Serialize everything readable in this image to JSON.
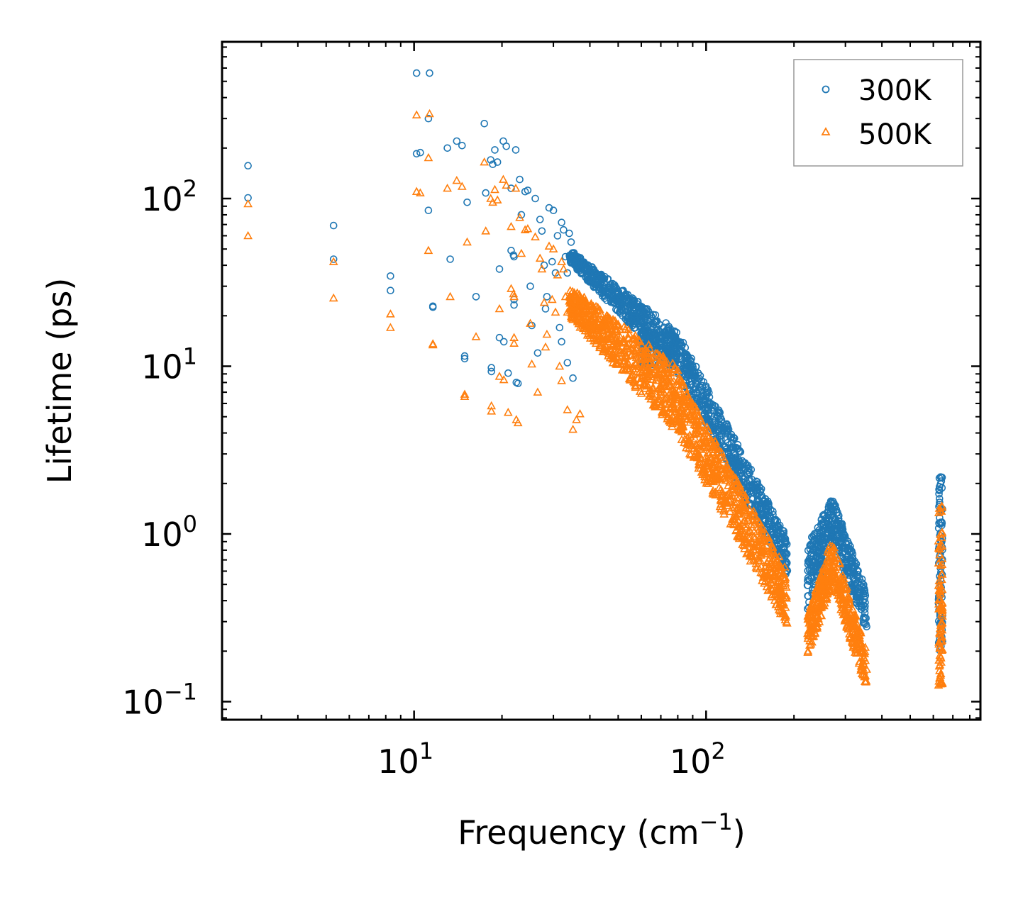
{
  "chart_data": {
    "type": "scatter",
    "x_scale": "log",
    "y_scale": "log",
    "xlabel": "Frequency (cm",
    "xlabel_sup": "−1",
    "xlabel_suffix": ")",
    "ylabel": "Lifetime (ps)",
    "xlim": [
      2.2,
      870
    ],
    "ylim": [
      0.078,
      860
    ],
    "x_ticks": [
      {
        "value": 10,
        "base": "10",
        "exp": "1"
      },
      {
        "value": 100,
        "base": "10",
        "exp": "2"
      }
    ],
    "y_ticks": [
      {
        "value": 0.1,
        "base": "10",
        "exp": "−1"
      },
      {
        "value": 1,
        "base": "10",
        "exp": "0"
      },
      {
        "value": 10,
        "base": "10",
        "exp": "1"
      },
      {
        "value": 100,
        "base": "10",
        "exp": "2"
      }
    ],
    "legend_position": "top-right",
    "series": [
      {
        "name": "300K",
        "marker": "circle",
        "color": "#1f77b4",
        "points": [
          [
            2.7,
            157
          ],
          [
            2.7,
            101
          ],
          [
            5.3,
            69
          ],
          [
            5.3,
            43.5
          ],
          [
            8.3,
            34.5
          ],
          [
            8.3,
            28.3
          ],
          [
            10.2,
            560
          ],
          [
            11.3,
            560
          ],
          [
            11.2,
            300
          ],
          [
            10.2,
            185
          ],
          [
            10.5,
            188
          ],
          [
            11.2,
            85
          ],
          [
            11.6,
            22.5
          ],
          [
            11.6,
            22.8
          ],
          [
            13.3,
            43.5
          ],
          [
            13.0,
            200
          ],
          [
            14.0,
            220
          ],
          [
            14.6,
            207
          ],
          [
            15.2,
            95
          ],
          [
            14.9,
            11.5
          ],
          [
            14.9,
            11.1
          ],
          [
            16.3,
            26.0
          ],
          [
            17.4,
            280
          ],
          [
            17.6,
            108
          ],
          [
            18.3,
            170
          ],
          [
            18.6,
            160
          ],
          [
            18.9,
            195
          ],
          [
            19.3,
            165
          ],
          [
            19.6,
            38
          ],
          [
            18.4,
            9.8
          ],
          [
            18.4,
            9.3
          ],
          [
            19.6,
            14.8
          ],
          [
            20.2,
            220
          ],
          [
            20.7,
            205
          ],
          [
            21.0,
            9.1
          ],
          [
            20.3,
            14.0
          ],
          [
            21.5,
            115
          ],
          [
            21.5,
            49
          ],
          [
            21.9,
            46
          ],
          [
            22.0,
            25
          ],
          [
            22.0,
            23.2
          ],
          [
            22.0,
            45
          ],
          [
            22.3,
            195
          ],
          [
            22.4,
            8.0
          ],
          [
            22.7,
            7.9
          ],
          [
            23.0,
            130
          ],
          [
            23.3,
            80
          ],
          [
            24.0,
            110
          ],
          [
            24.5,
            112
          ],
          [
            25.0,
            30
          ],
          [
            25.3,
            17.5
          ],
          [
            26.0,
            100
          ],
          [
            27.0,
            75
          ],
          [
            27.4,
            64
          ],
          [
            27.9,
            40
          ],
          [
            28.2,
            22
          ],
          [
            29.0,
            88
          ],
          [
            30.0,
            85
          ],
          [
            29.7,
            42
          ],
          [
            31.0,
            60
          ],
          [
            31.5,
            17
          ],
          [
            32.0,
            72
          ],
          [
            32.5,
            65
          ],
          [
            33.0,
            45
          ],
          [
            33.5,
            36
          ],
          [
            34.0,
            62
          ],
          [
            34.5,
            55
          ],
          [
            26.5,
            12
          ],
          [
            28.5,
            26
          ],
          [
            30.5,
            36
          ],
          [
            32.0,
            14
          ],
          [
            33.5,
            10.5
          ],
          [
            35,
            8.5
          ]
        ],
        "bands": [
          {
            "x_range": [
              34,
              80
            ],
            "y_start": [
              42,
              50
            ],
            "y_end": [
              9,
              16
            ],
            "count": 560
          },
          {
            "x_range": [
              60,
              80
            ],
            "y_start": [
              10,
              16
            ],
            "y_end": [
              10,
              16
            ],
            "count": 120
          },
          {
            "x_range": [
              80,
              190
            ],
            "y_start": [
              9,
              16
            ],
            "y_end": [
              0.55,
              0.95
            ],
            "count": 600
          },
          {
            "x_range": [
              222,
              270
            ],
            "y_start": [
              0.32,
              0.85
            ],
            "y_end": [
              0.95,
              1.65
            ],
            "count": 200
          },
          {
            "x_range": [
              270,
              355
            ],
            "y_start": [
              0.95,
              1.7
            ],
            "y_end": [
              0.25,
              0.45
            ],
            "count": 230
          },
          {
            "x_range": [
              625,
              645
            ],
            "y_start": [
              0.2,
              2.2
            ],
            "y_end": [
              0.2,
              2.2
            ],
            "count": 90
          }
        ]
      },
      {
        "name": "500K",
        "marker": "triangle",
        "color": "#ff7f0e",
        "points": [
          [
            2.7,
            93
          ],
          [
            2.7,
            60
          ],
          [
            5.3,
            42
          ],
          [
            5.3,
            25.5
          ],
          [
            8.3,
            20.5
          ],
          [
            8.3,
            17.0
          ],
          [
            10.2,
            315
          ],
          [
            11.3,
            320
          ],
          [
            11.2,
            175
          ],
          [
            10.2,
            110
          ],
          [
            10.5,
            108
          ],
          [
            11.2,
            49
          ],
          [
            11.6,
            13.6
          ],
          [
            11.6,
            13.4
          ],
          [
            13.3,
            26.0
          ],
          [
            13.0,
            115
          ],
          [
            14.0,
            128
          ],
          [
            14.6,
            118
          ],
          [
            15.2,
            55
          ],
          [
            14.9,
            6.8
          ],
          [
            14.9,
            6.6
          ],
          [
            16.3,
            15.0
          ],
          [
            17.4,
            165
          ],
          [
            17.6,
            64
          ],
          [
            18.3,
            100
          ],
          [
            18.6,
            95
          ],
          [
            18.9,
            113
          ],
          [
            19.3,
            98
          ],
          [
            19.6,
            22
          ],
          [
            18.4,
            5.8
          ],
          [
            18.4,
            5.4
          ],
          [
            19.6,
            8.7
          ],
          [
            20.2,
            130
          ],
          [
            20.7,
            120
          ],
          [
            21.0,
            5.3
          ],
          [
            20.3,
            8.3
          ],
          [
            21.5,
            68
          ],
          [
            21.5,
            29
          ],
          [
            21.9,
            27
          ],
          [
            22.0,
            14.8
          ],
          [
            22.0,
            13.7
          ],
          [
            22.0,
            26
          ],
          [
            22.3,
            115
          ],
          [
            22.4,
            4.8
          ],
          [
            22.7,
            4.6
          ],
          [
            23.0,
            77
          ],
          [
            23.3,
            47
          ],
          [
            24.0,
            65
          ],
          [
            24.5,
            66
          ],
          [
            25.0,
            18
          ],
          [
            25.3,
            10.3
          ],
          [
            26.0,
            59
          ],
          [
            27.0,
            44
          ],
          [
            27.4,
            38
          ],
          [
            27.9,
            24
          ],
          [
            28.2,
            13
          ],
          [
            29.0,
            52
          ],
          [
            30.0,
            50
          ],
          [
            29.7,
            25
          ],
          [
            31.0,
            35
          ],
          [
            31.5,
            10
          ],
          [
            32.0,
            42
          ],
          [
            32.5,
            38
          ],
          [
            33.0,
            26
          ],
          [
            33.5,
            21
          ],
          [
            26.5,
            7.0
          ],
          [
            28.5,
            15.5
          ],
          [
            30.5,
            21
          ],
          [
            32.0,
            8.2
          ],
          [
            33.5,
            5.5
          ],
          [
            35,
            4.2
          ],
          [
            37,
            5.2
          ],
          [
            36,
            4.8
          ]
        ],
        "bands": [
          {
            "x_range": [
              34,
              80
            ],
            "y_start": [
              20,
              30
            ],
            "y_end": [
              4,
              10
            ],
            "count": 620
          },
          {
            "x_range": [
              80,
              190
            ],
            "y_start": [
              4,
              9
            ],
            "y_end": [
              0.28,
              0.6
            ],
            "count": 650
          },
          {
            "x_range": [
              222,
              270
            ],
            "y_start": [
              0.18,
              0.32
            ],
            "y_end": [
              0.5,
              0.95
            ],
            "count": 200
          },
          {
            "x_range": [
              270,
              355
            ],
            "y_start": [
              0.5,
              0.95
            ],
            "y_end": [
              0.12,
              0.2
            ],
            "count": 230
          },
          {
            "x_range": [
              625,
              645
            ],
            "y_start": [
              0.12,
              1.5
            ],
            "y_end": [
              0.12,
              1.5
            ],
            "count": 90
          }
        ]
      }
    ]
  }
}
